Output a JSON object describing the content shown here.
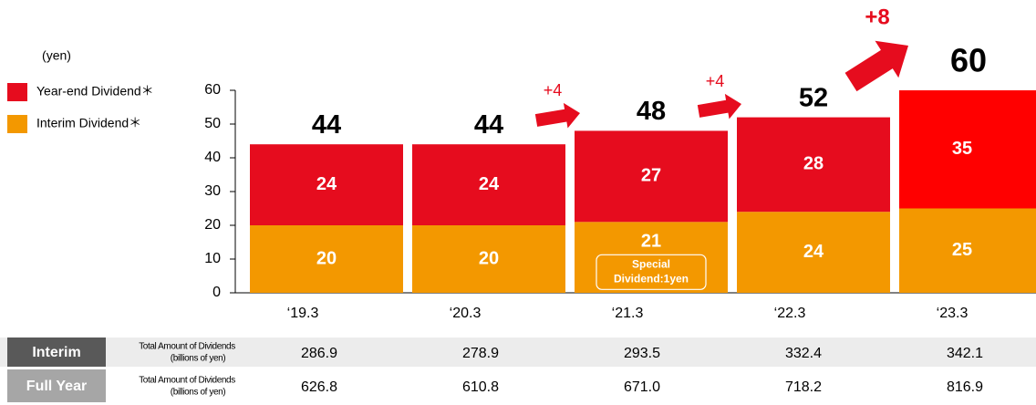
{
  "chart_data": {
    "type": "stacked_bar",
    "y_label": "(yen)",
    "categories": [
      "‘19.3",
      "‘20.3",
      "‘21.3",
      "‘22.3",
      "‘23.3"
    ],
    "series": [
      {
        "name": "Interim Dividend＊",
        "color": "#f39800",
        "values": [
          20,
          20,
          21,
          24,
          25
        ]
      },
      {
        "name": "Year-end Dividend＊",
        "color": "#e60c1e",
        "values": [
          24,
          24,
          27,
          28,
          35
        ],
        "colors": [
          "#e60c1e",
          "#e60c1e",
          "#e60c1e",
          "#e60c1e",
          "#ff0000"
        ]
      }
    ],
    "totals": [
      44,
      44,
      48,
      52,
      60
    ],
    "ylim": [
      0,
      60
    ],
    "yticks": [
      0,
      10,
      20,
      30,
      40,
      50,
      60
    ],
    "annotations": [
      "+4",
      "+4",
      "+8"
    ],
    "special_note": [
      "Special",
      "Dividend:1yen"
    ],
    "table": {
      "label": [
        "Total Amount of Dividends",
        "(billions of yen)"
      ],
      "rows": [
        {
          "name": "Interim",
          "values": [
            "286.9",
            "278.9",
            "293.5",
            "332.4",
            "342.1"
          ]
        },
        {
          "name": "Full Year",
          "values": [
            "626.8",
            "610.8",
            "671.0",
            "718.2",
            "816.9"
          ]
        }
      ]
    }
  }
}
